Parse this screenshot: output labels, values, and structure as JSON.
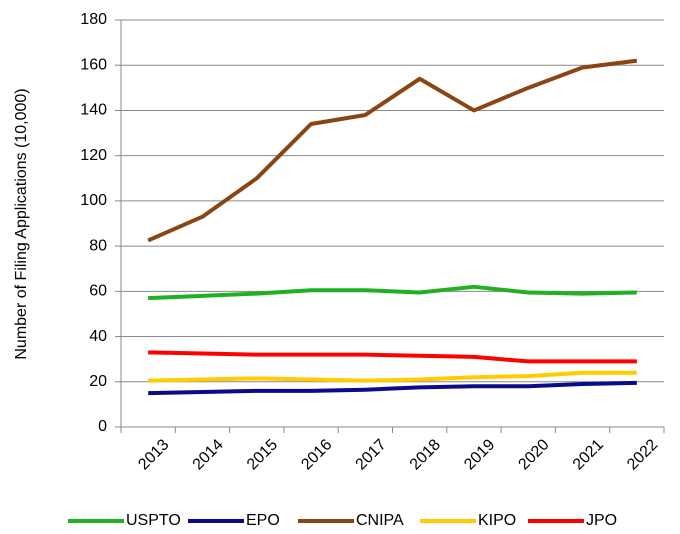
{
  "chart_data": {
    "type": "line",
    "y_label": "Number of Filing Applications  (10,000)",
    "categories": [
      "2013",
      "2014",
      "2015",
      "2016",
      "2017",
      "2018",
      "2019",
      "2020",
      "2021",
      "2022"
    ],
    "series": [
      {
        "name": "USPTO",
        "color": "#22b022",
        "values": [
          57,
          58,
          59,
          60.5,
          60.5,
          59.5,
          62,
          59.5,
          59,
          59.5
        ]
      },
      {
        "name": "EPO",
        "color": "#0a0a8c",
        "values": [
          15,
          15.5,
          16,
          16,
          16.5,
          17.5,
          18,
          18,
          19,
          19.5
        ]
      },
      {
        "name": "CNIPA",
        "color": "#8b4513",
        "values": [
          82.5,
          93,
          110,
          134,
          138,
          154,
          140,
          150,
          159,
          162
        ]
      },
      {
        "name": "KIPO",
        "color": "#ffcc00",
        "values": [
          20.5,
          21,
          21.5,
          21,
          20.5,
          21,
          22,
          22.5,
          24,
          24
        ]
      },
      {
        "name": "JPO",
        "color": "#ff0000",
        "values": [
          33,
          32.5,
          32,
          32,
          32,
          31.5,
          31,
          29,
          29,
          29
        ]
      }
    ],
    "ylim": [
      0,
      180
    ],
    "yticks": [
      0,
      20,
      40,
      60,
      80,
      100,
      120,
      140,
      160,
      180
    ],
    "grid": true,
    "legend": "bottom"
  }
}
